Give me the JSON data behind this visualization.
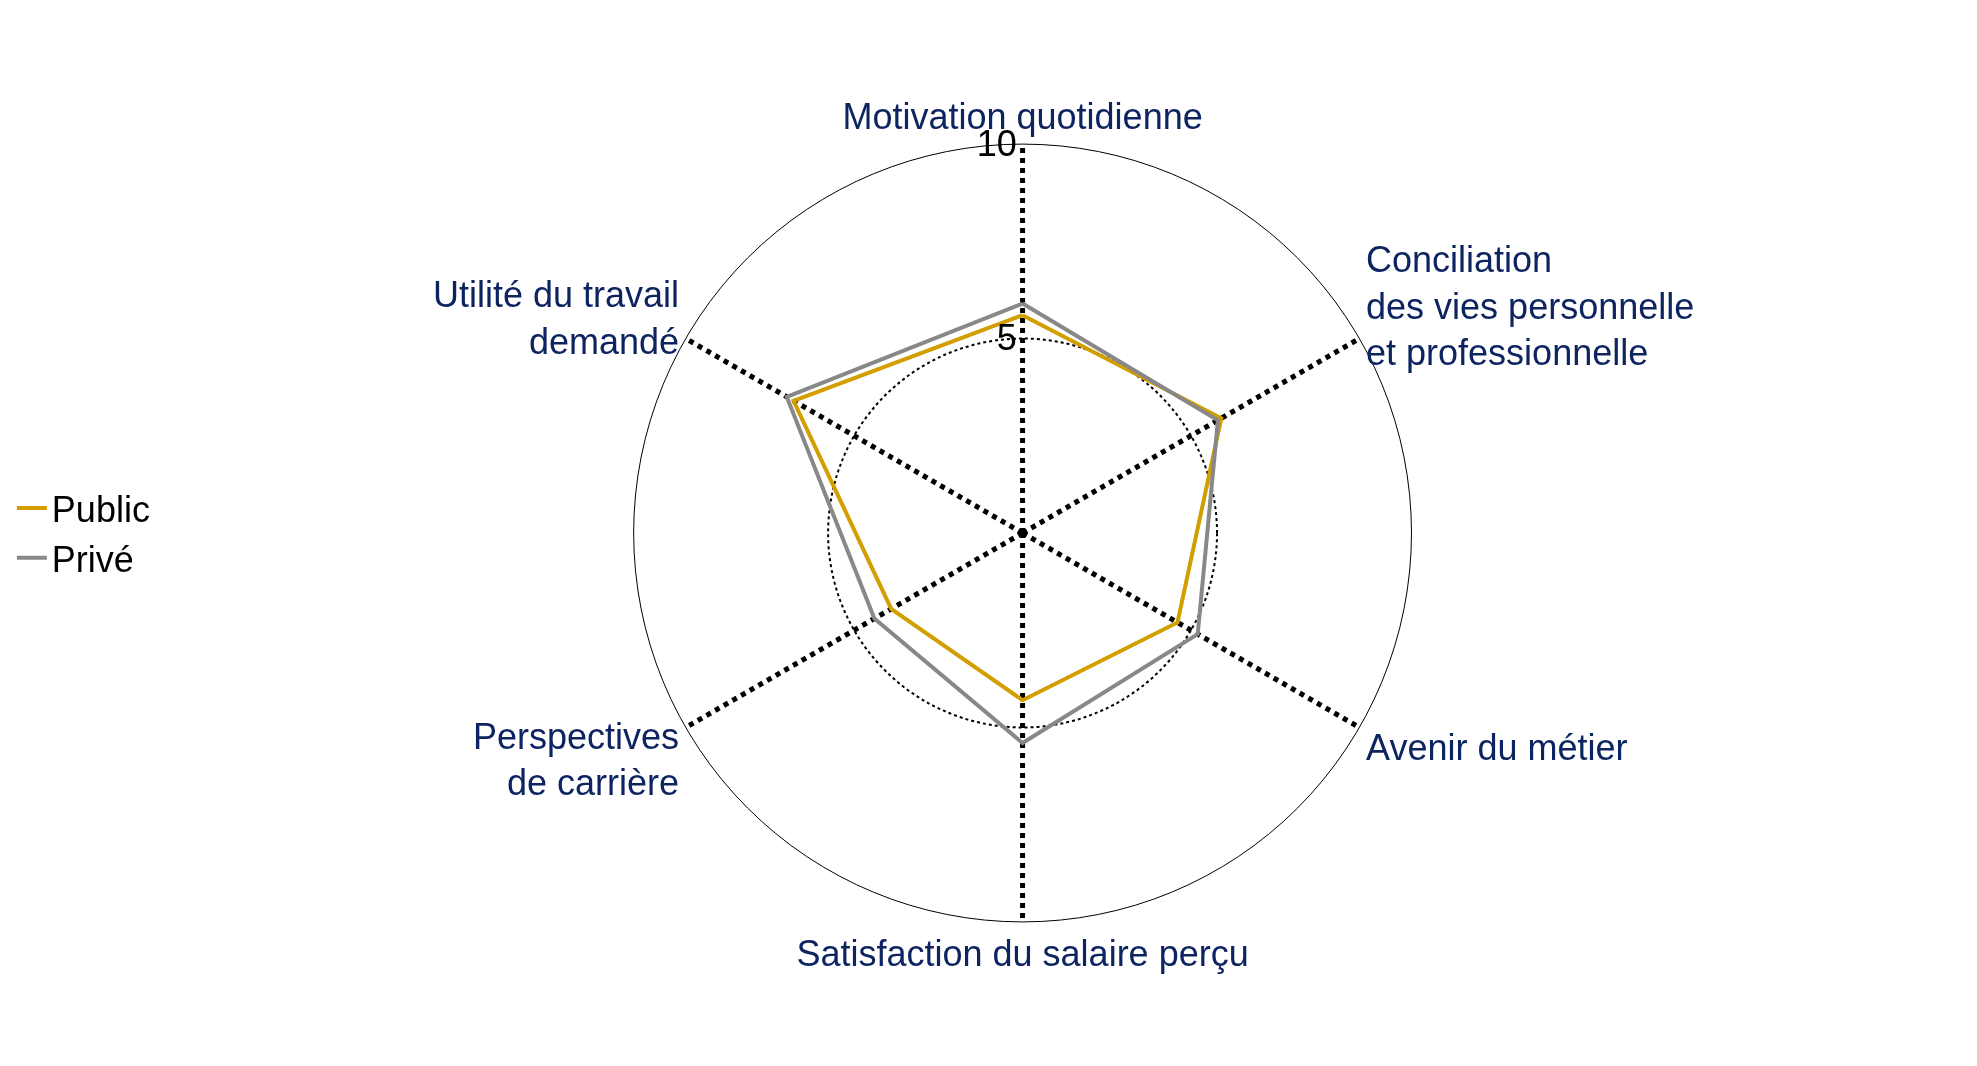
{
  "chart_data": {
    "type": "radar",
    "categories": [
      "Motivation quotidienne",
      "Conciliation\ndes vies personnelle\net professionnelle",
      "Avenir du métier",
      "Satisfaction du salaire perçu",
      "Perspectives\nde carrière",
      "Utilité du travail\ndemandé"
    ],
    "series": [
      {
        "name": "Public",
        "color": "#d29e00",
        "values": [
          5.6,
          5.9,
          4.6,
          4.3,
          3.9,
          6.8
        ]
      },
      {
        "name": "Privé",
        "color": "#888888",
        "values": [
          5.9,
          5.8,
          5.2,
          5.4,
          4.4,
          7.0
        ]
      }
    ],
    "ylim": [
      0,
      10
    ],
    "yticks": [
      5,
      10
    ],
    "grid": true,
    "legend": "left",
    "marker": "none"
  }
}
